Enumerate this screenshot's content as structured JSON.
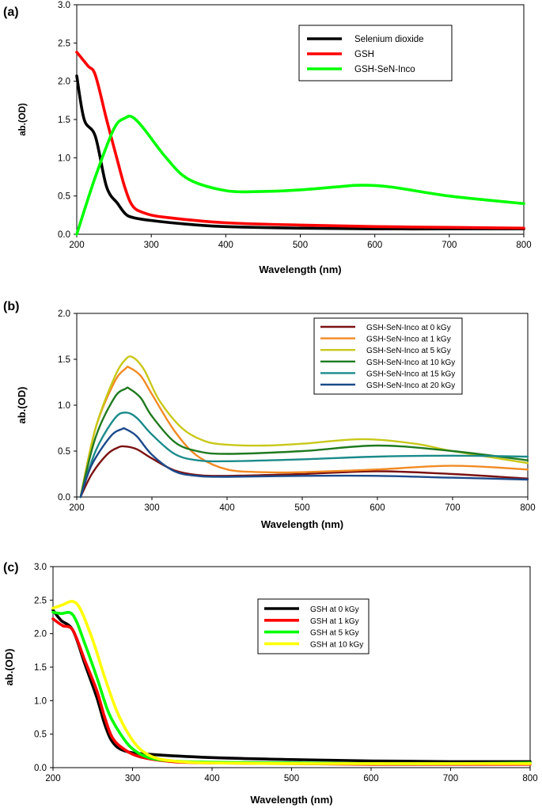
{
  "chart_data": [
    {
      "type": "line",
      "panel_label": "(a)",
      "xlabel": "Wavelength (nm)",
      "ylabel": "ab.(OD)",
      "xlim": [
        200,
        800
      ],
      "ylim": [
        0,
        3.0
      ],
      "x_ticks": [
        "200",
        "300",
        "400",
        "500",
        "600",
        "700",
        "800"
      ],
      "y_ticks": [
        "0.0",
        "0.5",
        "1.0",
        "1.5",
        "2.0",
        "2.5",
        "3.0"
      ],
      "grid": false,
      "legend_position": "top-right",
      "series": [
        {
          "name": "Selenium dioxide",
          "color": "#000000",
          "x": [
            200,
            210,
            225,
            240,
            255,
            265,
            275,
            300,
            350,
            400,
            500,
            600,
            700,
            800
          ],
          "y": [
            2.07,
            1.5,
            1.28,
            0.62,
            0.4,
            0.27,
            0.22,
            0.18,
            0.13,
            0.1,
            0.08,
            0.07,
            0.07,
            0.07
          ]
        },
        {
          "name": "GSH",
          "color": "#ff0000",
          "x": [
            200,
            215,
            225,
            240,
            255,
            265,
            275,
            290,
            320,
            400,
            500,
            600,
            700,
            800
          ],
          "y": [
            2.38,
            2.2,
            2.08,
            1.5,
            0.95,
            0.6,
            0.37,
            0.28,
            0.22,
            0.15,
            0.12,
            0.1,
            0.09,
            0.08
          ]
        },
        {
          "name": "GSH-SeN-Inco",
          "color": "#00ff00",
          "x": [
            200,
            225,
            250,
            265,
            275,
            290,
            320,
            350,
            400,
            450,
            500,
            550,
            580,
            620,
            700,
            800
          ],
          "y": [
            0.0,
            0.75,
            1.38,
            1.52,
            1.53,
            1.38,
            1.0,
            0.72,
            0.57,
            0.56,
            0.58,
            0.62,
            0.64,
            0.62,
            0.5,
            0.4
          ]
        }
      ]
    },
    {
      "type": "line",
      "panel_label": "(b)",
      "xlabel": "Wavelength (nm)",
      "ylabel": "ab.(OD)",
      "xlim": [
        200,
        800
      ],
      "ylim": [
        0,
        2.0
      ],
      "x_ticks": [
        "200",
        "300",
        "400",
        "500",
        "600",
        "700",
        "800"
      ],
      "y_ticks": [
        "0.0",
        "0.5",
        "1.0",
        "1.5",
        "2.0"
      ],
      "grid": false,
      "legend_position": "top-right",
      "series": [
        {
          "name": "GSH-SeN-Inco  at 0 kGy",
          "color": "#7b1212",
          "x": [
            205,
            220,
            240,
            255,
            265,
            280,
            300,
            330,
            360,
            400,
            500,
            600,
            700,
            800
          ],
          "y": [
            0.0,
            0.25,
            0.46,
            0.54,
            0.55,
            0.52,
            0.42,
            0.29,
            0.24,
            0.23,
            0.25,
            0.28,
            0.25,
            0.2
          ]
        },
        {
          "name": "GSH-SeN-Inco  at 1 kGy",
          "color": "#f28a22",
          "x": [
            205,
            225,
            250,
            265,
            270,
            285,
            300,
            330,
            360,
            400,
            450,
            500,
            600,
            700,
            800
          ],
          "y": [
            0.0,
            0.75,
            1.25,
            1.4,
            1.41,
            1.32,
            1.12,
            0.72,
            0.45,
            0.3,
            0.27,
            0.27,
            0.3,
            0.34,
            0.3
          ]
        },
        {
          "name": "GSH-SeN-Inco  at 5 kGy",
          "color": "#c8c819",
          "x": [
            205,
            225,
            250,
            265,
            275,
            290,
            310,
            340,
            370,
            400,
            450,
            500,
            580,
            650,
            700,
            800
          ],
          "y": [
            0.0,
            0.75,
            1.3,
            1.5,
            1.52,
            1.38,
            1.05,
            0.75,
            0.61,
            0.57,
            0.56,
            0.58,
            0.63,
            0.58,
            0.5,
            0.37
          ]
        },
        {
          "name": "GSH-SeN-Inco  at 10 kGy",
          "color": "#1f7a1f",
          "x": [
            205,
            225,
            250,
            265,
            270,
            285,
            300,
            330,
            360,
            400,
            500,
            600,
            700,
            800
          ],
          "y": [
            0.0,
            0.65,
            1.08,
            1.18,
            1.18,
            1.08,
            0.88,
            0.6,
            0.5,
            0.47,
            0.5,
            0.56,
            0.5,
            0.4
          ]
        },
        {
          "name": "GSH-SeN-Inco  at 15 kGy",
          "color": "#1a8a8a",
          "x": [
            205,
            225,
            250,
            265,
            280,
            300,
            330,
            360,
            400,
            500,
            600,
            700,
            800
          ],
          "y": [
            0.0,
            0.5,
            0.85,
            0.92,
            0.86,
            0.68,
            0.47,
            0.4,
            0.39,
            0.41,
            0.44,
            0.45,
            0.44
          ]
        },
        {
          "name": "GSH-SeN-Inco  at 20 kGy",
          "color": "#1c4a8a",
          "x": [
            205,
            220,
            245,
            260,
            265,
            280,
            300,
            330,
            360,
            400,
            500,
            600,
            700,
            800
          ],
          "y": [
            0.0,
            0.35,
            0.66,
            0.74,
            0.74,
            0.66,
            0.46,
            0.28,
            0.23,
            0.22,
            0.23,
            0.23,
            0.21,
            0.19
          ]
        }
      ]
    },
    {
      "type": "line",
      "panel_label": "(c)",
      "xlabel": "Wavelength (nm)",
      "ylabel": "ab.(OD)",
      "xlim": [
        200,
        800
      ],
      "ylim": [
        0,
        3.0
      ],
      "x_ticks": [
        "200",
        "300",
        "400",
        "500",
        "600",
        "700",
        "800"
      ],
      "y_ticks": [
        "0.0",
        "0.5",
        "1.0",
        "1.5",
        "2.0",
        "2.5",
        "3.0"
      ],
      "grid": false,
      "legend_position": "top-right",
      "series": [
        {
          "name": "GSH at 0 kGy",
          "color": "#000000",
          "x": [
            200,
            210,
            225,
            240,
            255,
            265,
            275,
            290,
            320,
            400,
            500,
            600,
            700,
            800
          ],
          "y": [
            2.35,
            2.2,
            2.05,
            1.55,
            1.05,
            0.65,
            0.38,
            0.25,
            0.2,
            0.15,
            0.12,
            0.1,
            0.09,
            0.09
          ]
        },
        {
          "name": "GSH at 1 kGy",
          "color": "#ff0000",
          "x": [
            200,
            212,
            225,
            240,
            255,
            265,
            275,
            290,
            310,
            350,
            400,
            500,
            600,
            700,
            800
          ],
          "y": [
            2.22,
            2.12,
            2.05,
            1.6,
            1.15,
            0.75,
            0.44,
            0.27,
            0.16,
            0.09,
            0.07,
            0.06,
            0.05,
            0.05,
            0.05
          ]
        },
        {
          "name": "GSH at 5 kGy",
          "color": "#00ff00",
          "x": [
            200,
            210,
            225,
            240,
            255,
            270,
            285,
            300,
            320,
            350,
            400,
            500,
            600,
            700,
            800
          ],
          "y": [
            2.32,
            2.3,
            2.28,
            1.85,
            1.35,
            0.82,
            0.5,
            0.28,
            0.15,
            0.1,
            0.08,
            0.07,
            0.06,
            0.06,
            0.07
          ]
        },
        {
          "name": "GSH at 10 kGy",
          "color": "#ffff00",
          "x": [
            200,
            212,
            225,
            235,
            250,
            265,
            280,
            295,
            310,
            330,
            360,
            400,
            500,
            600,
            700,
            800
          ],
          "y": [
            2.38,
            2.43,
            2.48,
            2.35,
            1.9,
            1.35,
            0.85,
            0.5,
            0.27,
            0.14,
            0.09,
            0.07,
            0.06,
            0.06,
            0.06,
            0.06
          ]
        }
      ]
    }
  ]
}
